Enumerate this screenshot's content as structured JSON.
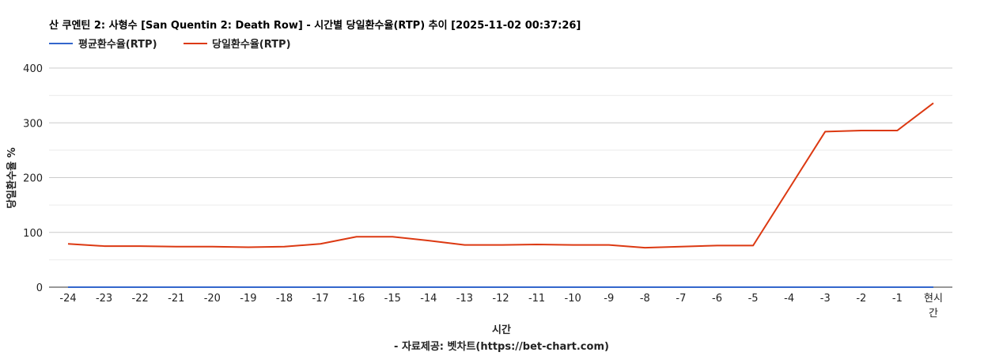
{
  "chart_data": {
    "type": "line",
    "title": "산 쿠엔틴 2: 사형수 [San Quentin 2: Death Row] - 시간별 당일환수율(RTP) 추이 [2025-11-02 00:37:26]",
    "xlabel": "시간",
    "ylabel": "당일환수율 %",
    "source": "- 자료제공: 벳차트(https://bet-chart.com)",
    "categories": [
      "-24",
      "-23",
      "-22",
      "-21",
      "-20",
      "-19",
      "-18",
      "-17",
      "-16",
      "-15",
      "-14",
      "-13",
      "-12",
      "-11",
      "-10",
      "-9",
      "-8",
      "-7",
      "-6",
      "-5",
      "-4",
      "-3",
      "-2",
      "-1",
      "현시간"
    ],
    "ylim": [
      0,
      400
    ],
    "yticks": [
      0,
      100,
      200,
      300,
      400
    ],
    "grid": true,
    "legend_position": "top-left",
    "series": [
      {
        "name": "평균환수율(RTP)",
        "color": "#3366cc",
        "values": [
          0,
          0,
          0,
          0,
          0,
          0,
          0,
          0,
          0,
          0,
          0,
          0,
          0,
          0,
          0,
          0,
          0,
          0,
          0,
          0,
          0,
          0,
          0,
          0,
          0
        ]
      },
      {
        "name": "당일환수율(RTP)",
        "color": "#dc3912",
        "values": [
          79,
          75,
          75,
          74,
          74,
          73,
          74,
          79,
          92,
          92,
          85,
          77,
          77,
          78,
          77,
          77,
          72,
          74,
          76,
          76,
          180,
          284,
          286,
          286,
          336
        ]
      }
    ]
  }
}
